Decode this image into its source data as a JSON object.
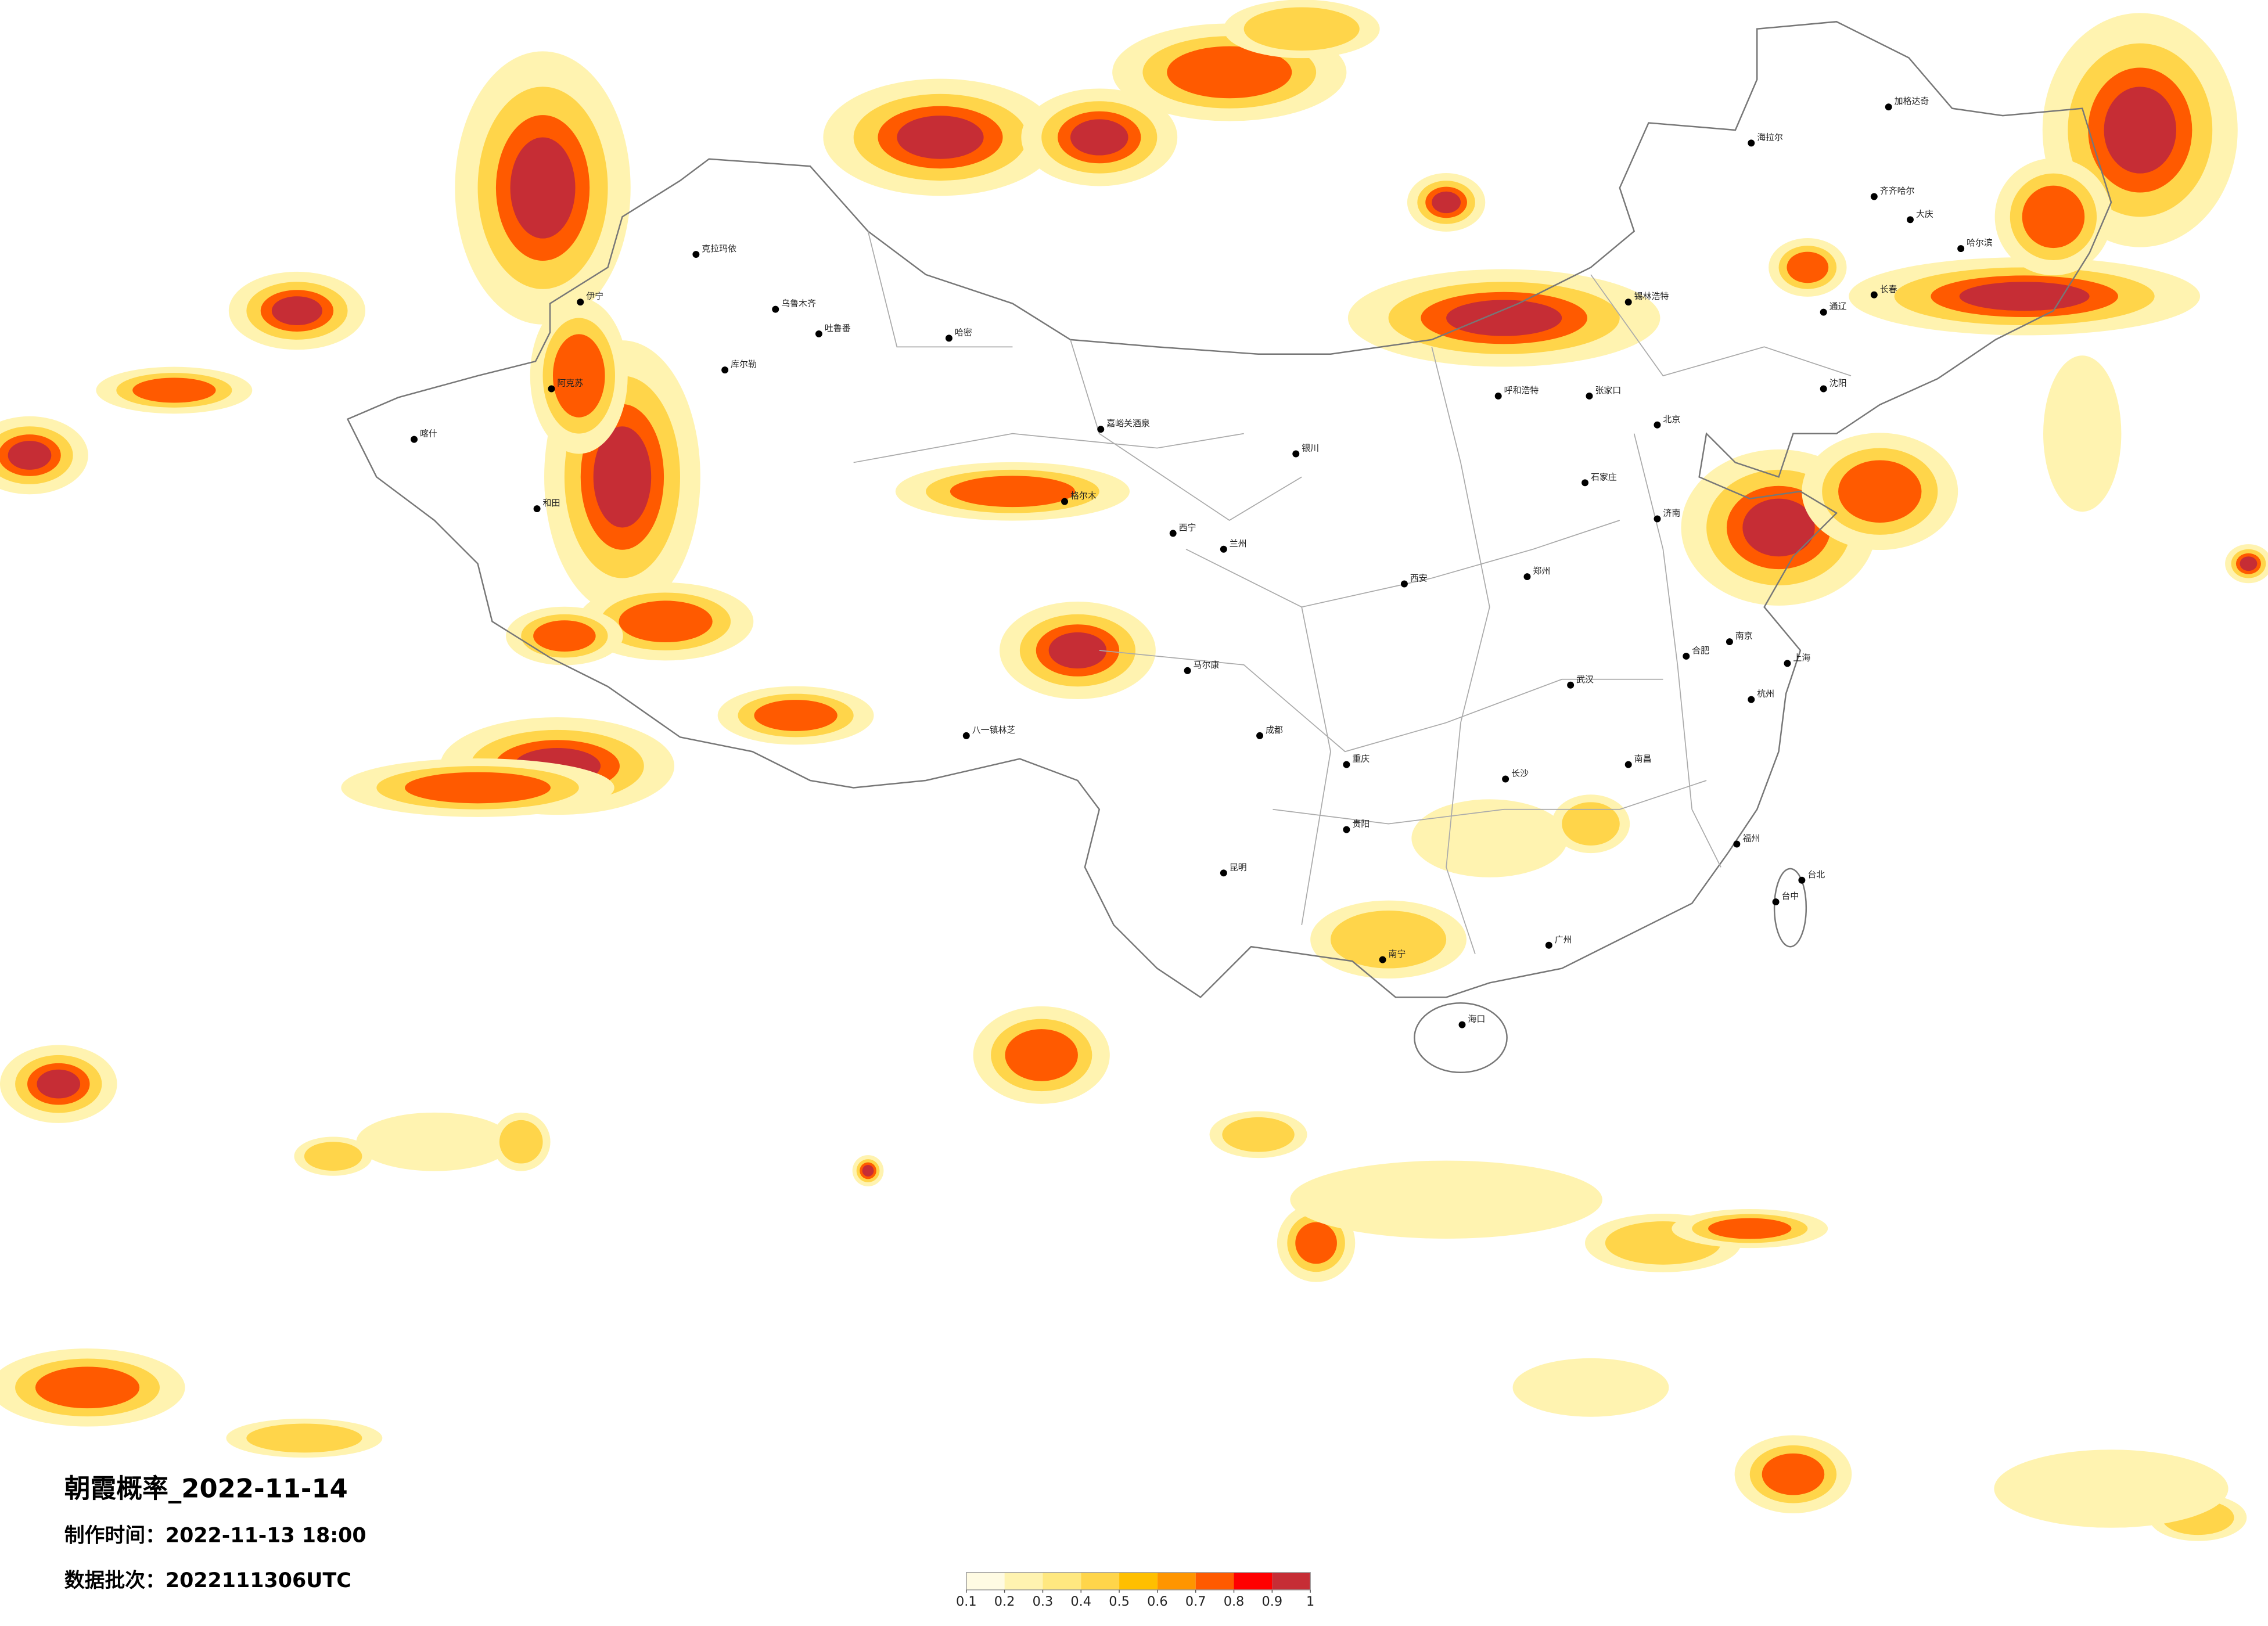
{
  "header": {
    "title": "朝霞概率_2022-11-14",
    "made_time": "制作时间：2022-11-13 18:00",
    "batch": "数据批次：2022111306UTC"
  },
  "legend": {
    "ticks": [
      0.1,
      0.2,
      0.3,
      0.4,
      0.5,
      0.6,
      0.7,
      0.8,
      0.9,
      1
    ],
    "colors": [
      "#fffbe3",
      "#fff3b0",
      "#ffe880",
      "#ffd54a",
      "#ffbf00",
      "#ff9500",
      "#ff5a00",
      "#ff0000",
      "#c62d35"
    ]
  },
  "cities": [
    "北京",
    "张家口",
    "呼和浩特",
    "石家庄",
    "济南",
    "郑州",
    "西安",
    "兰州",
    "西宁",
    "银川",
    "成都",
    "重庆",
    "贵阳",
    "昆明",
    "南宁",
    "广州",
    "海口",
    "长沙",
    "武汉",
    "南昌",
    "合肥",
    "南京",
    "上海",
    "杭州",
    "福州",
    "台北",
    "台中",
    "沈阳",
    "长春",
    "哈尔滨",
    "齐齐哈尔",
    "大庆",
    "海拉尔",
    "加格达奇",
    "通辽",
    "乌鲁木齐",
    "吐鲁番",
    "哈密",
    "克拉玛依",
    "库尔勒",
    "阿克苏",
    "和田",
    "喀什",
    "伊宁",
    "嘉峪关酒泉",
    "格尔木",
    "马尔康",
    "八一镇林芝",
    "锡林浩特"
  ]
}
